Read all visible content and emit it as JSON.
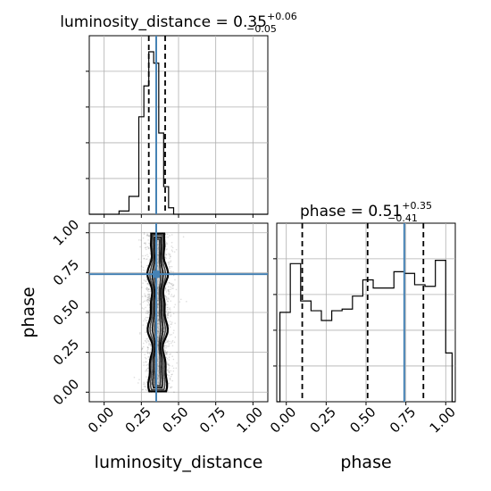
{
  "chart_data": [
    {
      "type": "histogram",
      "panel": "luminosity_distance marginal",
      "title": {
        "param": "luminosity_distance",
        "eq": " = ",
        "value": "0.35",
        "plus": "+0.06",
        "minus": "−0.05"
      },
      "xlim": [
        -0.1,
        1.1
      ],
      "bin_edges": [
        0.1,
        0.167,
        0.233,
        0.267,
        0.3,
        0.333,
        0.367,
        0.4,
        0.433,
        0.467,
        0.5
      ],
      "counts": [
        0.02,
        0.11,
        0.6,
        0.79,
        1.0,
        0.93,
        0.5,
        0.17,
        0.04,
        0.0
      ],
      "quantiles": [
        0.3,
        0.35,
        0.41
      ],
      "truth": 0.35,
      "grid": true
    },
    {
      "type": "histogram",
      "panel": "phase marginal",
      "title": {
        "param": "phase",
        "eq": " = ",
        "value": "0.51",
        "plus": "+0.35",
        "minus": "−0.41"
      },
      "xlim": [
        -0.06,
        1.06
      ],
      "bin_edges": [
        -0.04,
        0.025,
        0.09,
        0.155,
        0.22,
        0.285,
        0.35,
        0.415,
        0.48,
        0.545,
        0.61,
        0.675,
        0.74,
        0.805,
        0.87,
        0.935,
        1.0,
        1.04
      ],
      "counts": [
        0.55,
        0.85,
        0.62,
        0.56,
        0.5,
        0.56,
        0.57,
        0.65,
        0.75,
        0.7,
        0.7,
        0.8,
        0.79,
        0.72,
        0.71,
        0.87,
        0.3
      ],
      "quantiles": [
        0.1,
        0.51,
        0.86
      ],
      "truth": 0.74,
      "grid": true
    },
    {
      "type": "scatter",
      "panel": "joint density",
      "x_param": "luminosity_distance",
      "y_param": "phase",
      "xlim": [
        -0.1,
        1.1
      ],
      "ylim": [
        -0.06,
        1.06
      ],
      "x_center": 0.36,
      "x_sd": 0.045,
      "y_range": [
        0.0,
        1.0
      ],
      "truth": [
        0.35,
        0.74
      ],
      "grid": true
    }
  ],
  "axes": {
    "bottom_left_xlabel": "luminosity_distance",
    "bottom_right_xlabel": "phase",
    "left_ylabel": "phase",
    "x_ticks": [
      "0.00",
      "0.25",
      "0.50",
      "0.75",
      "1.00"
    ],
    "y_ticks": [
      "0.00",
      "0.25",
      "0.50",
      "0.75",
      "1.00"
    ]
  },
  "colors": {
    "truth": "#4682b4",
    "ink": "#000000",
    "grid": "#b0b0b0"
  }
}
